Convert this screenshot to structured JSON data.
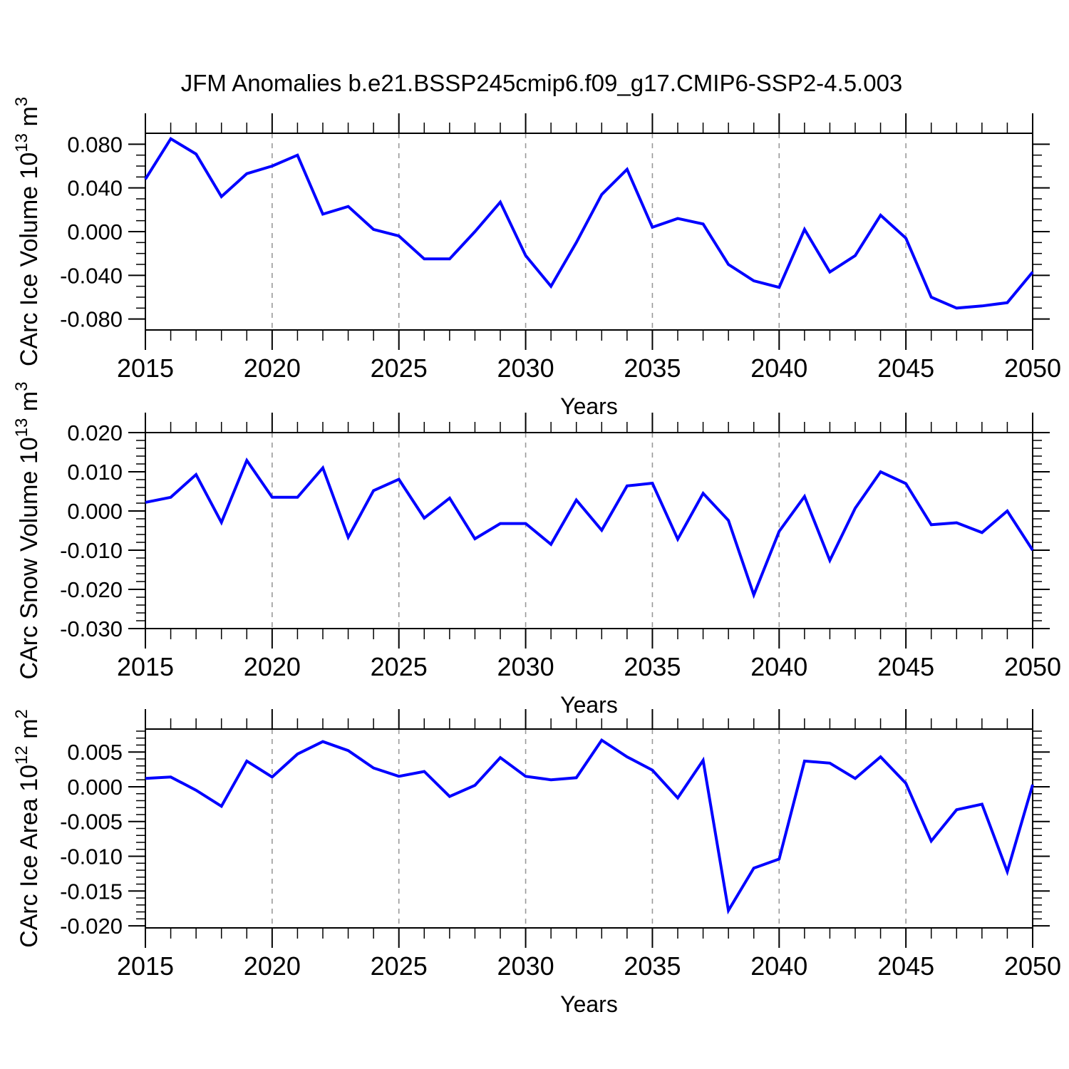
{
  "title": "JFM Anomalies b.e21.BSSP245cmip6.f09_g17.CMIP6-SSP2-4.5.003",
  "style": {
    "line_color": "#0000ff",
    "grid_color": "#999999",
    "axis_color": "#000000",
    "background": "#ffffff"
  },
  "chart_data": [
    {
      "type": "line",
      "name": "ice-volume",
      "xlabel": "Years",
      "ylabel": "CArc Ice Volume 10^13 m^3",
      "xlim": [
        2015,
        2050
      ],
      "ylim": [
        -0.09,
        0.09
      ],
      "x_major_ticks": [
        2015,
        2020,
        2025,
        2030,
        2035,
        2040,
        2045,
        2050
      ],
      "x_gridlines": [
        2020,
        2025,
        2030,
        2035,
        2040,
        2045
      ],
      "y_ticks": [
        0.08,
        0.04,
        0.0,
        -0.04,
        -0.08
      ],
      "y_minor_step": 0.01,
      "tick_label_decimals": 3,
      "grid": "vertical-dashed",
      "legend": "none",
      "x": [
        2015,
        2016,
        2017,
        2018,
        2019,
        2020,
        2021,
        2022,
        2023,
        2024,
        2025,
        2026,
        2027,
        2028,
        2029,
        2030,
        2031,
        2032,
        2033,
        2034,
        2035,
        2036,
        2037,
        2038,
        2039,
        2040,
        2041,
        2042,
        2043,
        2044,
        2045,
        2046,
        2047,
        2048,
        2049,
        2050
      ],
      "values": [
        0.048,
        0.085,
        0.071,
        0.032,
        0.053,
        0.06,
        0.07,
        0.016,
        0.023,
        0.002,
        -0.004,
        -0.025,
        -0.025,
        0.0,
        0.027,
        -0.022,
        -0.05,
        -0.01,
        0.034,
        0.057,
        0.004,
        0.012,
        0.007,
        -0.03,
        -0.045,
        -0.051,
        0.002,
        -0.037,
        -0.022,
        0.015,
        -0.006,
        -0.06,
        -0.07,
        -0.068,
        -0.065,
        -0.037
      ]
    },
    {
      "type": "line",
      "name": "snow-volume",
      "xlabel": "Years",
      "ylabel": "CArc Snow Volume 10^13 m^3",
      "xlim": [
        2015,
        2050
      ],
      "ylim": [
        -0.03,
        0.02
      ],
      "x_major_ticks": [
        2015,
        2020,
        2025,
        2030,
        2035,
        2040,
        2045,
        2050
      ],
      "x_gridlines": [
        2020,
        2025,
        2030,
        2035,
        2040,
        2045
      ],
      "y_ticks": [
        0.02,
        0.01,
        0.0,
        -0.01,
        -0.02,
        -0.03
      ],
      "y_minor_step": 0.002,
      "tick_label_decimals": 3,
      "grid": "vertical-dashed",
      "legend": "none",
      "x": [
        2015,
        2016,
        2017,
        2018,
        2019,
        2020,
        2021,
        2022,
        2023,
        2024,
        2025,
        2026,
        2027,
        2028,
        2029,
        2030,
        2031,
        2032,
        2033,
        2034,
        2035,
        2036,
        2037,
        2038,
        2039,
        2040,
        2041,
        2042,
        2043,
        2044,
        2045,
        2046,
        2047,
        2048,
        2049,
        2050
      ],
      "values": [
        0.0022,
        0.0035,
        0.0093,
        -0.0029,
        0.0129,
        0.0035,
        0.0035,
        0.011,
        -0.0067,
        0.0052,
        0.0081,
        -0.0018,
        0.0033,
        -0.0071,
        -0.0032,
        -0.0032,
        -0.0085,
        0.0028,
        -0.0049,
        0.0064,
        0.0071,
        -0.0072,
        0.0045,
        -0.0024,
        -0.0214,
        -0.0052,
        0.0037,
        -0.0126,
        0.0007,
        0.01,
        0.007,
        -0.0035,
        -0.003,
        -0.0055,
        0.0,
        -0.01
      ]
    },
    {
      "type": "line",
      "name": "ice-area",
      "xlabel": "Years",
      "ylabel": "CArc Ice Area 10^12 m^2",
      "xlim": [
        2015,
        2050
      ],
      "ylim": [
        -0.0203,
        0.0083
      ],
      "x_major_ticks": [
        2015,
        2020,
        2025,
        2030,
        2035,
        2040,
        2045,
        2050
      ],
      "x_gridlines": [
        2020,
        2025,
        2030,
        2035,
        2040,
        2045
      ],
      "y_ticks": [
        0.005,
        0.0,
        -0.005,
        -0.01,
        -0.015,
        -0.02
      ],
      "y_minor_step": 0.001,
      "tick_label_decimals": 3,
      "grid": "vertical-dashed",
      "legend": "none",
      "x": [
        2015,
        2016,
        2017,
        2018,
        2019,
        2020,
        2021,
        2022,
        2023,
        2024,
        2025,
        2026,
        2027,
        2028,
        2029,
        2030,
        2031,
        2032,
        2033,
        2034,
        2035,
        2036,
        2037,
        2038,
        2039,
        2040,
        2041,
        2042,
        2043,
        2044,
        2045,
        2046,
        2047,
        2048,
        2049,
        2050
      ],
      "values": [
        0.0012,
        0.0014,
        -0.0005,
        -0.0028,
        0.0037,
        0.0014,
        0.0047,
        0.0065,
        0.0052,
        0.0027,
        0.0015,
        0.0022,
        -0.0014,
        0.0002,
        0.0042,
        0.0015,
        0.001,
        0.0013,
        0.0067,
        0.0043,
        0.0024,
        -0.0016,
        0.0038,
        -0.0178,
        -0.0117,
        -0.0104,
        0.0037,
        0.0034,
        0.0012,
        0.0043,
        0.0005,
        -0.0078,
        -0.0033,
        -0.0025,
        -0.0122,
        0.0003
      ]
    }
  ]
}
